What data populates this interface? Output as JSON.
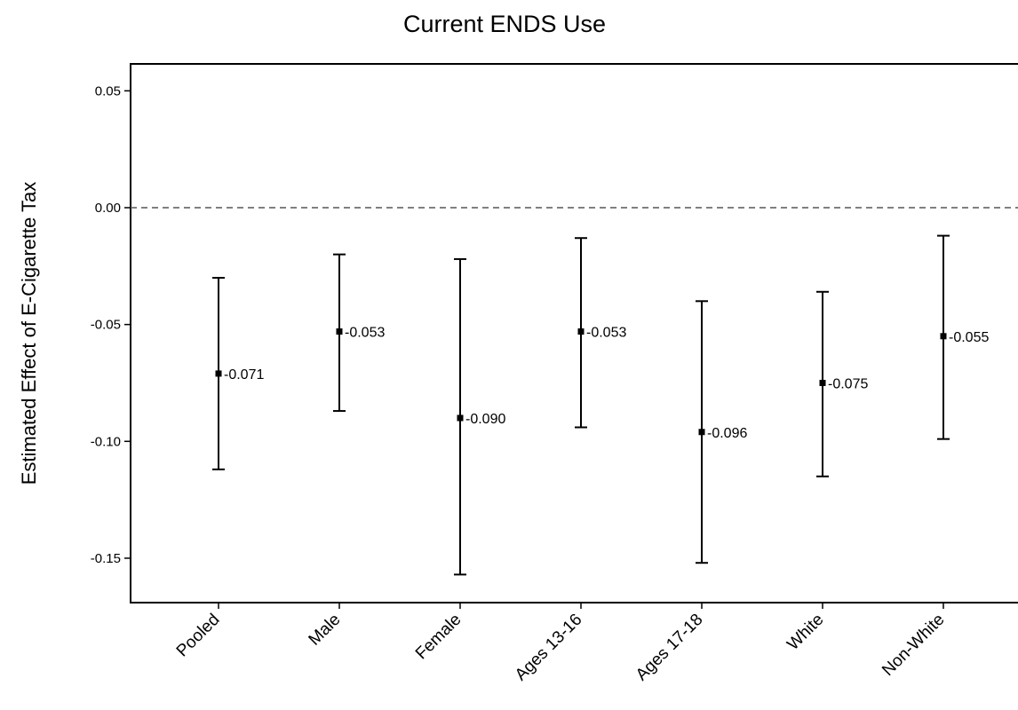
{
  "chart_data": {
    "type": "scatter",
    "subtype": "point-estimates-with-error-bars",
    "title": "Current ENDS Use",
    "xlabel": "",
    "ylabel": "Estimated Effect of E-Cigarette Tax",
    "ylim": [
      -0.168,
      0.062
    ],
    "yticks": [
      0.05,
      0.0,
      -0.05,
      -0.1,
      -0.15
    ],
    "ytick_labels": [
      "0.05",
      "0.00",
      "-0.05",
      "-0.10",
      "-0.15"
    ],
    "reference_line": {
      "y": 0.0,
      "style": "dashed"
    },
    "grid": false,
    "legend": "none",
    "categories": [
      "Pooled",
      "Male",
      "Female",
      "Ages 13-16",
      "Ages 17-18",
      "White",
      "Non-White"
    ],
    "estimates": [
      -0.071,
      -0.053,
      -0.09,
      -0.053,
      -0.096,
      -0.075,
      -0.055
    ],
    "estimate_labels": [
      "-0.071",
      "-0.053",
      "-0.090",
      "-0.053",
      "-0.096",
      "-0.075",
      "-0.055"
    ],
    "ci_lower": [
      -0.112,
      -0.087,
      -0.157,
      -0.094,
      -0.152,
      -0.115,
      -0.099
    ],
    "ci_upper": [
      -0.03,
      -0.02,
      -0.022,
      -0.013,
      -0.04,
      -0.036,
      -0.012
    ]
  }
}
